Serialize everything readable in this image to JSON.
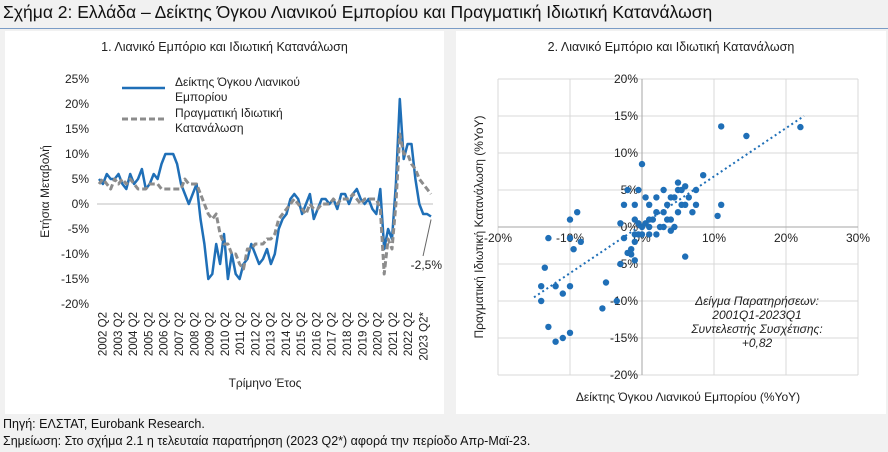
{
  "figure_title": "Σχήμα 2: Ελλάδα – Δείκτης Όγκου Λιανικού Εμπορίου και Πραγματική Ιδιωτική Κατανάλωση",
  "source": "Πηγή: ΕΛΣΤΑΤ, Eurobank Research.",
  "note": "Σημείωση: Στο σχήμα 2.1 η τελευταία παρατήρηση (2023 Q2*) αφορά την περίοδο Απρ-Μαϊ-23.",
  "colors": {
    "retail": "#1f6fb7",
    "consumption": "#8c8c8c",
    "scatter": "#1f6fb7",
    "grid": "#d9d9d9"
  },
  "chart_data": [
    {
      "type": "line",
      "title": "1. Λιανικό Εμπόριο και Ιδιωτική Κατανάλωση",
      "xlabel": "Τρίμηνο Έτος",
      "ylabel": "Ετήσια Μεταβολή",
      "ylim": [
        -20,
        25
      ],
      "ytick_labels": [
        "25%",
        "20%",
        "15%",
        "10%",
        "5%",
        "0%",
        "-5%",
        "-10%",
        "-15%",
        "-20%"
      ],
      "xtick_labels": [
        "2002 Q2",
        "2003 Q2",
        "2004 Q2",
        "2005 Q2",
        "2006 Q2",
        "2007 Q2",
        "2008 Q2",
        "2009 Q2",
        "2010 Q2",
        "2011 Q2",
        "2012 Q2",
        "2013 Q2",
        "2014 Q2",
        "2015 Q2",
        "2016 Q2",
        "2017 Q2",
        "2018 Q2",
        "2019 Q2",
        "2020 Q2",
        "2021 Q2",
        "2022 Q2",
        "2023 Q2*"
      ],
      "legend_position": "top-left",
      "annotation": "-2,5%",
      "grid": true,
      "series": [
        {
          "name": "Δείκτης Όγκου Λιανικού Εμπορίου",
          "style": "solid",
          "x": [
            "2002Q1",
            "2002Q2",
            "2002Q3",
            "2002Q4",
            "2003Q1",
            "2003Q2",
            "2003Q3",
            "2003Q4",
            "2004Q1",
            "2004Q2",
            "2004Q3",
            "2004Q4",
            "2005Q1",
            "2005Q2",
            "2005Q3",
            "2005Q4",
            "2006Q1",
            "2006Q2",
            "2006Q3",
            "2006Q4",
            "2007Q1",
            "2007Q2",
            "2007Q3",
            "2007Q4",
            "2008Q1",
            "2008Q2",
            "2008Q3",
            "2008Q4",
            "2009Q1",
            "2009Q2",
            "2009Q3",
            "2009Q4",
            "2010Q1",
            "2010Q2",
            "2010Q3",
            "2010Q4",
            "2011Q1",
            "2011Q2",
            "2011Q3",
            "2011Q4",
            "2012Q1",
            "2012Q2",
            "2012Q3",
            "2012Q4",
            "2013Q1",
            "2013Q2",
            "2013Q3",
            "2013Q4",
            "2014Q1",
            "2014Q2",
            "2014Q3",
            "2014Q4",
            "2015Q1",
            "2015Q2",
            "2015Q3",
            "2015Q4",
            "2016Q1",
            "2016Q2",
            "2016Q3",
            "2016Q4",
            "2017Q1",
            "2017Q2",
            "2017Q3",
            "2017Q4",
            "2018Q1",
            "2018Q2",
            "2018Q3",
            "2018Q4",
            "2019Q1",
            "2019Q2",
            "2019Q3",
            "2019Q4",
            "2020Q1",
            "2020Q2",
            "2020Q3",
            "2020Q4",
            "2021Q1",
            "2021Q2",
            "2021Q3",
            "2021Q4",
            "2022Q1",
            "2022Q2",
            "2022Q3",
            "2022Q4",
            "2023Q1",
            "2023Q2*"
          ],
          "values": [
            5,
            4,
            6,
            5,
            5,
            6,
            4,
            3,
            6,
            4,
            5,
            7,
            3,
            4,
            6,
            5,
            8,
            10,
            10,
            10,
            8,
            4,
            2,
            0,
            2,
            4,
            -3,
            -8,
            -15,
            -14,
            -8,
            -12,
            -6,
            -15,
            -10,
            -14,
            -15,
            -12,
            -11,
            -8,
            -10,
            -12,
            -11,
            -9,
            -12,
            -10,
            -5,
            -3,
            -2,
            1,
            2,
            1,
            -2,
            0,
            2,
            -3,
            -1,
            1,
            1,
            0,
            1,
            -1,
            2,
            2,
            0,
            2,
            3,
            1,
            0,
            1,
            -1,
            -2,
            3,
            -9,
            -5,
            -7,
            4,
            21,
            9,
            12,
            12,
            5,
            0,
            -2,
            -2,
            -2.5
          ]
        },
        {
          "name": "Πραγματική Ιδιωτική Κατανάλωση",
          "style": "dashed",
          "x": [
            "2002Q1",
            "2002Q2",
            "2002Q3",
            "2002Q4",
            "2003Q1",
            "2003Q2",
            "2003Q3",
            "2003Q4",
            "2004Q1",
            "2004Q2",
            "2004Q3",
            "2004Q4",
            "2005Q1",
            "2005Q2",
            "2005Q3",
            "2005Q4",
            "2006Q1",
            "2006Q2",
            "2006Q3",
            "2006Q4",
            "2007Q1",
            "2007Q2",
            "2007Q3",
            "2007Q4",
            "2008Q1",
            "2008Q2",
            "2008Q3",
            "2008Q4",
            "2009Q1",
            "2009Q2",
            "2009Q3",
            "2009Q4",
            "2010Q1",
            "2010Q2",
            "2010Q3",
            "2010Q4",
            "2011Q1",
            "2011Q2",
            "2011Q3",
            "2011Q4",
            "2012Q1",
            "2012Q2",
            "2012Q3",
            "2012Q4",
            "2013Q1",
            "2013Q2",
            "2013Q3",
            "2013Q4",
            "2014Q1",
            "2014Q2",
            "2014Q3",
            "2014Q4",
            "2015Q1",
            "2015Q2",
            "2015Q3",
            "2015Q4",
            "2016Q1",
            "2016Q2",
            "2016Q3",
            "2016Q4",
            "2017Q1",
            "2017Q2",
            "2017Q3",
            "2017Q4",
            "2018Q1",
            "2018Q2",
            "2018Q3",
            "2018Q4",
            "2019Q1",
            "2019Q2",
            "2019Q3",
            "2019Q4",
            "2020Q1",
            "2020Q2",
            "2020Q3",
            "2020Q4",
            "2021Q1",
            "2021Q2",
            "2021Q3",
            "2021Q4",
            "2022Q1",
            "2022Q2",
            "2022Q3",
            "2022Q4",
            "2023Q1",
            "2023Q2*"
          ],
          "values": [
            4,
            5,
            4,
            3,
            5,
            4,
            5,
            4,
            5,
            4,
            3,
            3,
            3,
            4,
            4,
            4,
            3,
            3,
            3,
            3,
            3,
            3,
            5,
            4,
            4,
            4,
            2,
            0,
            -2,
            -3,
            -2,
            -6,
            -8,
            -8,
            -10,
            -10,
            -12,
            -13,
            -9,
            -9,
            -8,
            -8,
            -8,
            -7,
            -7,
            -6,
            -3,
            -2,
            -1,
            0,
            1,
            0,
            -1,
            -2,
            0,
            -1,
            -1,
            0,
            0,
            0,
            1,
            0,
            1,
            1,
            1,
            2,
            1,
            0,
            1,
            1,
            1,
            1,
            -1,
            -14,
            -7,
            -9,
            0,
            14,
            10,
            10,
            8,
            7,
            5,
            4,
            3,
            2
          ]
        }
      ]
    },
    {
      "type": "scatter",
      "title": "2. Λιανικό Εμπόριο και Ιδιωτική Κατανάλωση",
      "xlabel": "Δείκτης Όγκου Λιανικού Εμπορίου (%YoY)",
      "ylabel": "Πραγματική Ιδιωτική Κατανάλωση (%YoY)",
      "xlim": [
        -20,
        30
      ],
      "ylim": [
        -20,
        20
      ],
      "xtick_labels": [
        "-20%",
        "-10%",
        "0%",
        "10%",
        "20%",
        "30%"
      ],
      "ytick_labels": [
        "20%",
        "15%",
        "10%",
        "5%",
        "0%",
        "-5%",
        "-10%",
        "-15%",
        "-20%"
      ],
      "trendline": "linear",
      "annotation_lines": [
        "Δείγμα Παρατηρήσεων:",
        "2001Q1-2023Q1",
        "Συντελεστής Συσχέτισης:",
        "+0,82"
      ],
      "grid": true,
      "points": [
        [
          22,
          13.5
        ],
        [
          14.5,
          12.3
        ],
        [
          11,
          13.6
        ],
        [
          11,
          3
        ],
        [
          10.5,
          1.5
        ],
        [
          8.5,
          7
        ],
        [
          -10,
          -1.5
        ],
        [
          -9,
          2
        ],
        [
          -8.5,
          -2
        ],
        [
          -10,
          1
        ],
        [
          -9.5,
          -3
        ],
        [
          -13,
          -1.5
        ],
        [
          -13.5,
          -5.5
        ],
        [
          -14,
          -8
        ],
        [
          -12,
          -8
        ],
        [
          -11,
          -9
        ],
        [
          -10,
          -8
        ],
        [
          -14,
          -10
        ],
        [
          -13,
          -13.5
        ],
        [
          -12,
          -15.5
        ],
        [
          -11,
          -15
        ],
        [
          -10,
          -14.3
        ],
        [
          -5,
          -7.5
        ],
        [
          -5.5,
          -11
        ],
        [
          -3.5,
          -10
        ],
        [
          -2,
          -3.5
        ],
        [
          -1.5,
          -3.7
        ],
        [
          -2.5,
          -1.5
        ],
        [
          -1,
          -1
        ],
        [
          -1,
          1
        ],
        [
          -1.5,
          -3
        ],
        [
          -1,
          -2
        ],
        [
          -0.5,
          -1
        ],
        [
          0,
          0
        ],
        [
          0.5,
          0.5
        ],
        [
          1,
          1
        ],
        [
          1.5,
          1
        ],
        [
          2,
          2
        ],
        [
          3,
          0
        ],
        [
          3,
          2
        ],
        [
          3.5,
          3
        ],
        [
          4,
          4
        ],
        [
          4,
          1
        ],
        [
          4.5,
          0
        ],
        [
          5,
          2
        ],
        [
          5.5,
          3
        ],
        [
          5,
          5
        ],
        [
          5.5,
          5
        ],
        [
          6,
          3
        ],
        [
          6.5,
          4
        ],
        [
          7,
          2
        ],
        [
          7.5,
          3
        ],
        [
          6,
          5.5
        ],
        [
          5,
          6
        ],
        [
          4.5,
          4
        ],
        [
          3,
          5
        ],
        [
          2,
          4
        ],
        [
          1,
          3
        ],
        [
          0.5,
          4
        ],
        [
          0,
          8.5
        ],
        [
          -0.5,
          5
        ],
        [
          -1,
          3
        ],
        [
          -2,
          5
        ],
        [
          -2.5,
          3
        ],
        [
          -3,
          0.5
        ],
        [
          -0.5,
          0.5
        ],
        [
          0,
          -1
        ],
        [
          1,
          0
        ],
        [
          1,
          -1
        ],
        [
          2,
          -1
        ],
        [
          2.5,
          0
        ],
        [
          3.5,
          1
        ],
        [
          4,
          -0.5
        ],
        [
          -3,
          -5
        ],
        [
          6,
          -4
        ],
        [
          -1,
          -4.5
        ],
        [
          7.5,
          5
        ]
      ]
    }
  ]
}
